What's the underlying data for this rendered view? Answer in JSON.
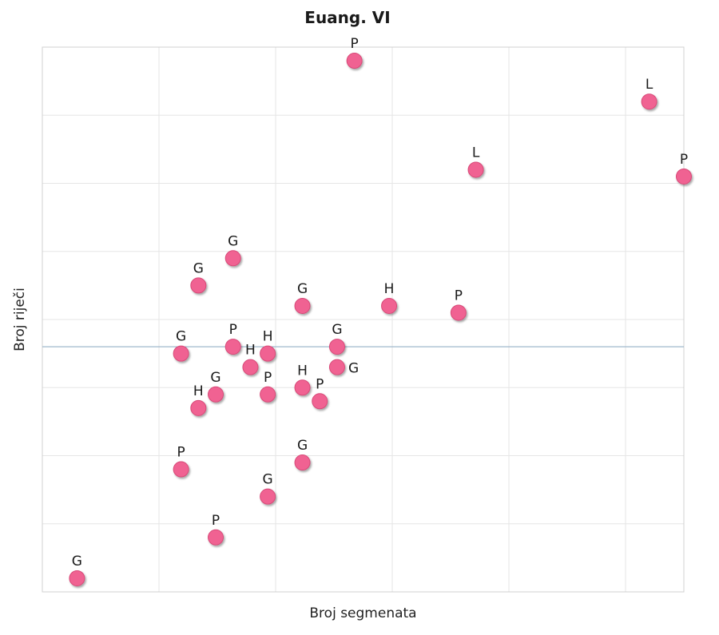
{
  "chart_data": {
    "type": "scatter",
    "title": "Euang. VI",
    "xlabel": "Broj segmenata",
    "ylabel": "Broj riječi",
    "xlim": [
      0,
      37
    ],
    "ylim": [
      0,
      8
    ],
    "grid": true,
    "reference_line_y": 3.6,
    "colors": {
      "point": "#f06292",
      "point_stroke": "#d84a78",
      "ref_line": "#9fb8cc",
      "grid": "#e6e6e6"
    },
    "points": [
      {
        "x": 18,
        "y": 7.8,
        "label": "P"
      },
      {
        "x": 35,
        "y": 7.2,
        "label": "L"
      },
      {
        "x": 25,
        "y": 6.2,
        "label": "L"
      },
      {
        "x": 37,
        "y": 6.1,
        "label": "P"
      },
      {
        "x": 11,
        "y": 4.9,
        "label": "G"
      },
      {
        "x": 9,
        "y": 4.5,
        "label": "G"
      },
      {
        "x": 15,
        "y": 4.2,
        "label": "G"
      },
      {
        "x": 20,
        "y": 4.2,
        "label": "H"
      },
      {
        "x": 24,
        "y": 4.1,
        "label": "P"
      },
      {
        "x": 8,
        "y": 3.5,
        "label": "G"
      },
      {
        "x": 11,
        "y": 3.6,
        "label": "P"
      },
      {
        "x": 13,
        "y": 3.5,
        "label": "H"
      },
      {
        "x": 12,
        "y": 3.3,
        "label": "H"
      },
      {
        "x": 17,
        "y": 3.6,
        "label": "G"
      },
      {
        "x": 17,
        "y": 3.3,
        "label": "G",
        "label_position": "right"
      },
      {
        "x": 10,
        "y": 2.9,
        "label": "G"
      },
      {
        "x": 13,
        "y": 2.9,
        "label": "P"
      },
      {
        "x": 15,
        "y": 3.0,
        "label": "H"
      },
      {
        "x": 16,
        "y": 2.8,
        "label": "P"
      },
      {
        "x": 9,
        "y": 2.7,
        "label": "H"
      },
      {
        "x": 8,
        "y": 1.8,
        "label": "P"
      },
      {
        "x": 15,
        "y": 1.9,
        "label": "G"
      },
      {
        "x": 13,
        "y": 1.4,
        "label": "G"
      },
      {
        "x": 10,
        "y": 0.8,
        "label": "P"
      },
      {
        "x": 2,
        "y": 0.2,
        "label": "G"
      }
    ]
  }
}
